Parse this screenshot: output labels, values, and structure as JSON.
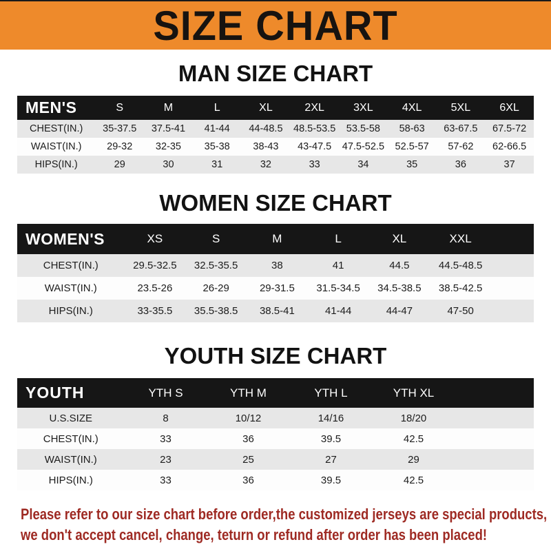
{
  "banner": {
    "title": "SIZE CHART"
  },
  "sections": {
    "men": {
      "title": "MAN SIZE CHART",
      "table": {
        "header": [
          "MEN'S",
          "S",
          "M",
          "L",
          "XL",
          "2XL",
          "3XL",
          "4XL",
          "5XL",
          "6XL"
        ],
        "rows": [
          [
            "CHEST(IN.)",
            "35-37.5",
            "37.5-41",
            "41-44",
            "44-48.5",
            "48.5-53.5",
            "53.5-58",
            "58-63",
            "63-67.5",
            "67.5-72"
          ],
          [
            "WAIST(IN.)",
            "29-32",
            "32-35",
            "35-38",
            "38-43",
            "43-47.5",
            "47.5-52.5",
            "52.5-57",
            "57-62",
            "62-66.5"
          ],
          [
            "HIPS(IN.)",
            "29",
            "30",
            "31",
            "32",
            "33",
            "34",
            "35",
            "36",
            "37"
          ]
        ]
      }
    },
    "women": {
      "title": "WOMEN SIZE CHART",
      "table": {
        "header": [
          "WOMEN'S",
          "XS",
          "S",
          "M",
          "L",
          "XL",
          "XXL"
        ],
        "rows": [
          [
            "CHEST(IN.)",
            "29.5-32.5",
            "32.5-35.5",
            "38",
            "41",
            "44.5",
            "44.5-48.5"
          ],
          [
            "WAIST(IN.)",
            "23.5-26",
            "26-29",
            "29-31.5",
            "31.5-34.5",
            "34.5-38.5",
            "38.5-42.5"
          ],
          [
            "HIPS(IN.)",
            "33-35.5",
            "35.5-38.5",
            "38.5-41",
            "41-44",
            "44-47",
            "47-50"
          ]
        ]
      }
    },
    "youth": {
      "title": "YOUTH SIZE CHART",
      "table": {
        "header": [
          "YOUTH",
          "YTH S",
          "YTH M",
          "YTH L",
          "YTH XL"
        ],
        "rows": [
          [
            "U.S.SIZE",
            "8",
            "10/12",
            "14/16",
            "18/20"
          ],
          [
            "CHEST(IN.)",
            "33",
            "36",
            "39.5",
            "42.5"
          ],
          [
            "WAIST(IN.)",
            "23",
            "25",
            "27",
            "29"
          ],
          [
            "HIPS(IN.)",
            "33",
            "36",
            "39.5",
            "42.5"
          ]
        ]
      }
    }
  },
  "footer": {
    "line1": "Please refer to our size chart before order,the customized jerseys are special products,",
    "line2": "we don't accept cancel, change, teturn or refund after order has been placed!"
  },
  "colors": {
    "banner_bg": "#ee8a2b",
    "table_header_bg": "#161616",
    "row_stripe": "#e7e7e7",
    "footer_text": "#9e2a23"
  }
}
